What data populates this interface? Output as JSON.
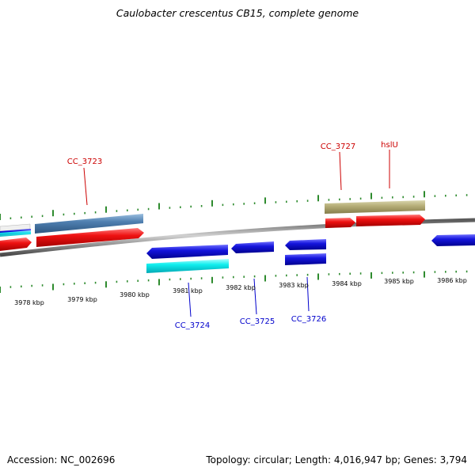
{
  "title": "Caulobacter crescentus CB15, complete genome",
  "footer": {
    "accession": "Accession: NC_002696",
    "summary": "Topology: circular; Length: 4,016,947 bp; Genes: 3,794"
  },
  "colors": {
    "backbone": "#888888",
    "tick": "#2e8b2e",
    "label_forward": "#cc0000",
    "label_reverse": "#0000cc",
    "red": "#ee1111",
    "blue": "#1515dd",
    "cyan": "#11eeee",
    "steel": "#4f7fb0",
    "khaki": "#b8b07a"
  },
  "scale_labels": [
    "3978 kbp",
    "3979 kbp",
    "3980 kbp",
    "3981 kbp",
    "3982 kbp",
    "3983 kbp",
    "3984 kbp",
    "3985 kbp",
    "3986 kbp"
  ],
  "gene_labels": {
    "cc3723": "CC_3723",
    "cc3727": "CC_3727",
    "hslu": "hslU",
    "cc3724": "CC_3724",
    "cc3725": "CC_3725",
    "cc3726": "CC_3726"
  }
}
